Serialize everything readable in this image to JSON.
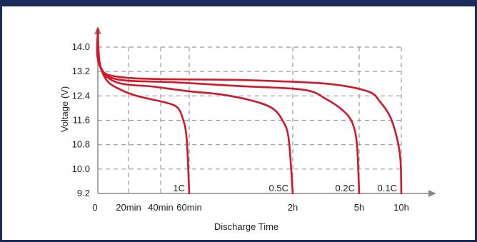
{
  "chart_data": {
    "type": "line",
    "title": "",
    "xlabel": "Discharge Time",
    "ylabel": "Voltage (V)",
    "ylim": [
      9.2,
      14.0
    ],
    "yticks": [
      "14.0",
      "13.2",
      "12.4",
      "11.6",
      "10.8",
      "10.0",
      "9.2"
    ],
    "xticks": [
      "0",
      "20min",
      "40min",
      "60min",
      "2h",
      "5h",
      "10h"
    ],
    "grid": true,
    "colors": {
      "series": "#d1182b",
      "grid": "#9a9a9a",
      "axis": "#8a8a8a",
      "frame": "#1a2a5a"
    },
    "series": [
      {
        "name": "1C",
        "points": [
          [
            0,
            14.6
          ],
          [
            0.02,
            13.5
          ],
          [
            0.1,
            12.9
          ],
          [
            0.25,
            12.6
          ],
          [
            0.4,
            12.42
          ],
          [
            0.55,
            12.3
          ],
          [
            0.7,
            12.2
          ],
          [
            0.85,
            12.05
          ],
          [
            0.92,
            11.7
          ],
          [
            0.97,
            11.0
          ],
          [
            1.0,
            9.2
          ]
        ]
      },
      {
        "name": "0.5C",
        "points": [
          [
            0,
            14.6
          ],
          [
            0.02,
            13.4
          ],
          [
            0.2,
            12.85
          ],
          [
            0.6,
            12.7
          ],
          [
            1.0,
            12.55
          ],
          [
            1.3,
            12.45
          ],
          [
            1.6,
            12.25
          ],
          [
            1.8,
            12.0
          ],
          [
            1.9,
            11.6
          ],
          [
            1.96,
            11.0
          ],
          [
            2.0,
            9.2
          ]
        ]
      },
      {
        "name": "0.2C",
        "points": [
          [
            0,
            14.6
          ],
          [
            0.02,
            13.4
          ],
          [
            0.2,
            12.95
          ],
          [
            0.8,
            12.85
          ],
          [
            1.5,
            12.72
          ],
          [
            2.5,
            12.6
          ],
          [
            3.5,
            12.3
          ],
          [
            4.3,
            11.9
          ],
          [
            4.7,
            11.5
          ],
          [
            4.9,
            10.8
          ],
          [
            5.0,
            9.2
          ]
        ]
      },
      {
        "name": "0.1C",
        "points": [
          [
            0,
            14.6
          ],
          [
            0.02,
            13.4
          ],
          [
            0.3,
            13.0
          ],
          [
            1.5,
            12.92
          ],
          [
            3.5,
            12.8
          ],
          [
            6.0,
            12.55
          ],
          [
            7.5,
            12.2
          ],
          [
            8.7,
            11.7
          ],
          [
            9.5,
            11.0
          ],
          [
            9.9,
            10.3
          ],
          [
            10.0,
            9.2
          ]
        ]
      }
    ]
  }
}
